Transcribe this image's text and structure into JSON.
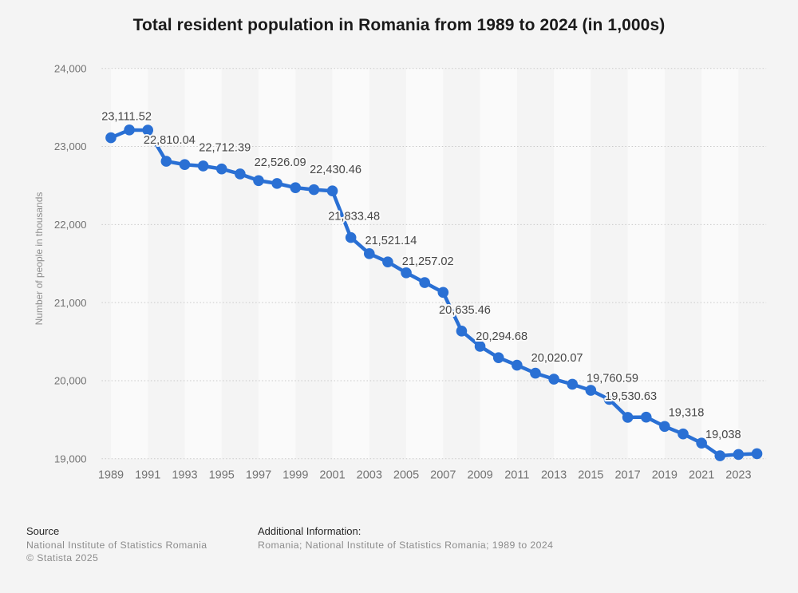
{
  "title": "Total resident population in Romania from 1989 to 2024 (in 1,000s)",
  "chart_data": {
    "type": "line",
    "title": "Total resident population in Romania from 1989 to 2024 (in 1,000s)",
    "xlabel": "",
    "ylabel": "Number of people in thousands",
    "ylim": [
      19000,
      24000
    ],
    "xlim": [
      1989,
      2024
    ],
    "grid": "horizontal-dotted",
    "legend": "none",
    "series_name": "Number of people in thousands",
    "series_color": "#2a70d4",
    "plot_band_light": "#fafafa",
    "background": "#f4f4f4",
    "x": [
      1989,
      1990,
      1991,
      1992,
      1993,
      1994,
      1995,
      1996,
      1997,
      1998,
      1999,
      2000,
      2001,
      2002,
      2003,
      2004,
      2005,
      2006,
      2007,
      2008,
      2009,
      2010,
      2011,
      2012,
      2013,
      2014,
      2015,
      2016,
      2017,
      2018,
      2019,
      2020,
      2021,
      2022,
      2023,
      2024
    ],
    "values": [
      23111.52,
      23211.4,
      23209,
      22810.04,
      22768,
      22750,
      22712.39,
      22648,
      22563,
      22526.09,
      22472,
      22447,
      22430.46,
      21833.48,
      21627,
      21521.14,
      21382,
      21257.02,
      21131,
      20635.46,
      20440,
      20294.68,
      20199,
      20096,
      20020.07,
      19954,
      19876,
      19760.59,
      19530.63,
      19533,
      19414,
      19318,
      19201,
      19038,
      19055,
      19065
    ],
    "point_labels": [
      {
        "x": 1989,
        "label": "23,111.52"
      },
      {
        "x": 1992,
        "label": "22,810.04"
      },
      {
        "x": 1995,
        "label": "22,712.39"
      },
      {
        "x": 1998,
        "label": "22,526.09"
      },
      {
        "x": 2001,
        "label": "22,430.46"
      },
      {
        "x": 2002,
        "label": "21,833.48"
      },
      {
        "x": 2004,
        "label": "21,521.14"
      },
      {
        "x": 2006,
        "label": "21,257.02"
      },
      {
        "x": 2008,
        "label": "20,635.46"
      },
      {
        "x": 2010,
        "label": "20,294.68"
      },
      {
        "x": 2013,
        "label": "20,020.07"
      },
      {
        "x": 2016,
        "label": "19,760.59"
      },
      {
        "x": 2017,
        "label": "19,530.63"
      },
      {
        "x": 2020,
        "label": "19,318"
      },
      {
        "x": 2022,
        "label": "19,038"
      }
    ],
    "y_ticks": [
      {
        "value": 19000,
        "label": "19,000"
      },
      {
        "value": 20000,
        "label": "20,000"
      },
      {
        "value": 21000,
        "label": "21,000"
      },
      {
        "value": 22000,
        "label": "22,000"
      },
      {
        "value": 23000,
        "label": "23,000"
      },
      {
        "value": 24000,
        "label": "24,000"
      }
    ],
    "x_ticks": [
      "1989",
      "1991",
      "1993",
      "1995",
      "1997",
      "1999",
      "2001",
      "2003",
      "2005",
      "2007",
      "2009",
      "2011",
      "2013",
      "2015",
      "2017",
      "2019",
      "2021",
      "2023"
    ]
  },
  "footer": {
    "source_label": "Source",
    "source_line1": "National Institute of Statistics Romania",
    "source_line2": "© Statista 2025",
    "additional_label": "Additional Information:",
    "additional_line1": "Romania; National Institute of Statistics Romania; 1989 to 2024"
  }
}
